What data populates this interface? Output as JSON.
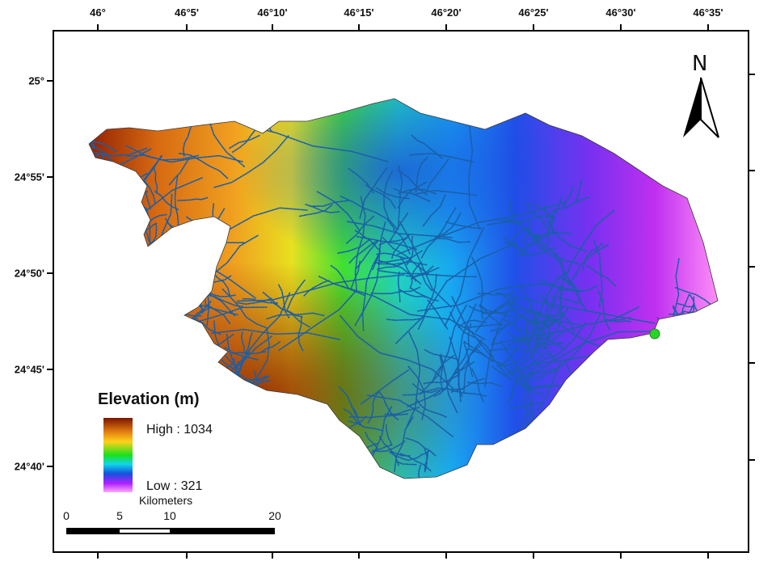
{
  "map": {
    "lon_labels": [
      "46°",
      "46°5'",
      "46°10'",
      "46°15'",
      "46°20'",
      "46°25'",
      "46°30'",
      "46°35'"
    ],
    "lat_labels": [
      "25°",
      "24°55'",
      "24°50'",
      "24°45'",
      "24°40'"
    ],
    "legend": {
      "title": "Elevation (m)",
      "high": "High : 1034",
      "low": "Low : 321",
      "colors": [
        "#7a1500",
        "#e07a10",
        "#ffd21a",
        "#19e01a",
        "#10d8e8",
        "#1550e0",
        "#b020ff",
        "#ffa8ff"
      ]
    },
    "scale_bar": {
      "title": "Kilometers",
      "labels": [
        "0",
        "5",
        "10",
        "20"
      ]
    },
    "north_arrow": {
      "label": "N",
      "icon": "north-arrow-icon"
    },
    "stream_color": "#1a5fa8",
    "outlet_color": "#28d428"
  }
}
